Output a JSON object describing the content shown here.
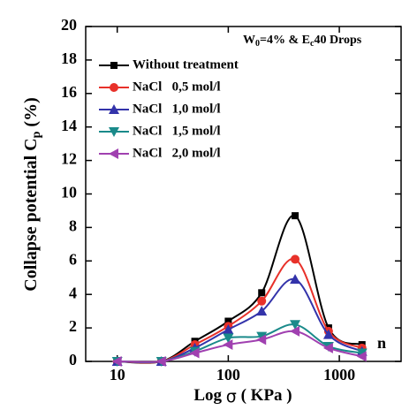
{
  "chart_data": {
    "type": "line",
    "annotation": [
      "W",
      "0",
      "=4% & E",
      "c",
      "40 Drops"
    ],
    "ylabel": [
      "Collapse potential C",
      "p",
      " (%)"
    ],
    "xlabel": [
      "Log ",
      "σ",
      " ( KPa )"
    ],
    "corner_text": "n",
    "x": [
      10,
      25,
      50,
      100,
      200,
      400,
      800,
      1600
    ],
    "series": [
      {
        "name": "Without treatment",
        "color": "#000000",
        "marker": "square",
        "values": [
          0,
          0,
          1.2,
          2.4,
          4.1,
          8.7,
          2.0,
          1.0
        ]
      },
      {
        "name": "NaCl   0,5 mol/l",
        "color": "#e8312a",
        "marker": "circle",
        "values": [
          0,
          0,
          1.0,
          2.1,
          3.6,
          6.1,
          1.8,
          0.8
        ]
      },
      {
        "name": "NaCl   1,0 mol/l",
        "color": "#3333aa",
        "marker": "triangle-up",
        "values": [
          0,
          0,
          0.8,
          1.9,
          3.0,
          4.9,
          1.6,
          0.6
        ]
      },
      {
        "name": "NaCl   1,5 mol/l",
        "color": "#1a8a8a",
        "marker": "triangle-down",
        "values": [
          0,
          0,
          0.6,
          1.4,
          1.5,
          2.2,
          0.9,
          0.5
        ]
      },
      {
        "name": "NaCl   2,0 mol/l",
        "color": "#a040b0",
        "marker": "triangle-left",
        "values": [
          0,
          0,
          0.5,
          1.0,
          1.3,
          1.8,
          0.8,
          0.3
        ]
      }
    ],
    "xscale": "log",
    "xlim": [
      5.2,
      3600
    ],
    "xticks": [
      10,
      100,
      1000
    ],
    "ylim": [
      0,
      20
    ],
    "yticks": [
      0,
      2,
      4,
      6,
      8,
      10,
      12,
      14,
      16,
      18,
      20
    ],
    "legend": "upper left"
  }
}
